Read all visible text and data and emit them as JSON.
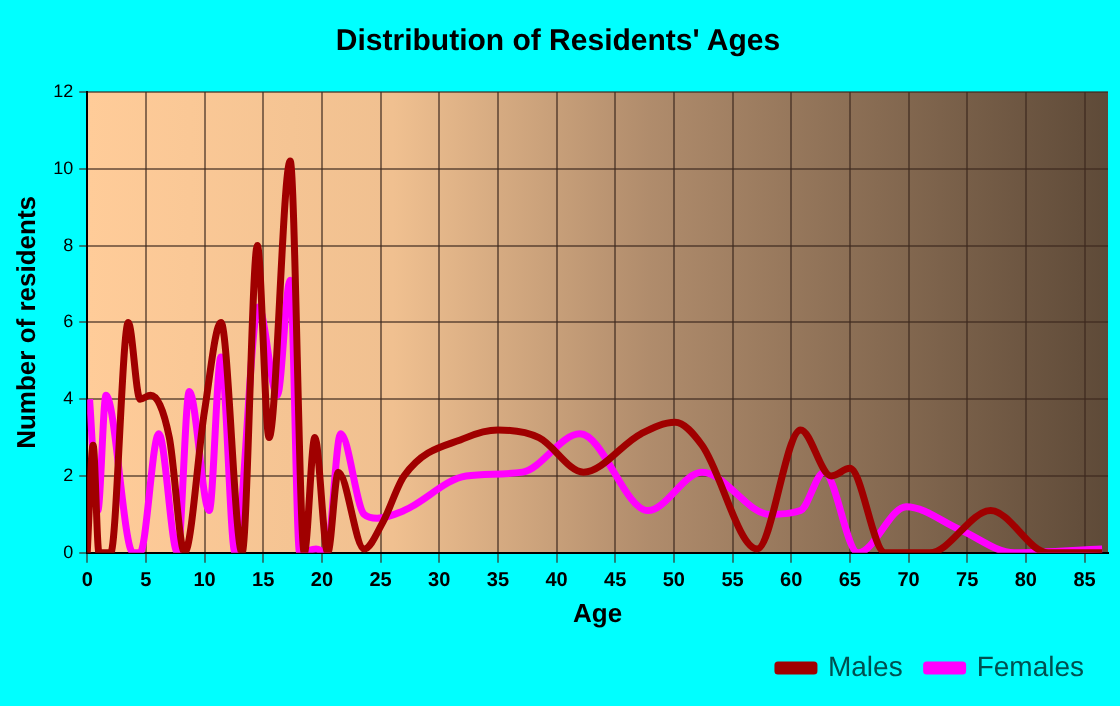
{
  "chart_data": {
    "type": "line",
    "title": "Distribution of Residents' Ages",
    "xlabel": "Age",
    "ylabel": "Number of residents",
    "xlim": [
      0,
      87
    ],
    "xticks": [
      0,
      5,
      10,
      15,
      20,
      25,
      30,
      35,
      40,
      45,
      50,
      55,
      60,
      65,
      70,
      75,
      80,
      85
    ],
    "ylim": [
      0,
      12
    ],
    "yticks": [
      0,
      2,
      4,
      6,
      8,
      10,
      12
    ],
    "grid": true,
    "legend": "bottom right",
    "marker": "none",
    "line_style": "solid",
    "series": [
      {
        "name": "Males",
        "color": "#a00000",
        "x": [
          0,
          0.5,
          1,
          2,
          3.5,
          4.5,
          5.4,
          7,
          8.3,
          10,
          11.4,
          13.2,
          14.5,
          15.5,
          17.3,
          18.5,
          19.4,
          20.5,
          21.4,
          23.6,
          25.2,
          27,
          32.3,
          35,
          38.5,
          42.3,
          47.2,
          50.1,
          52.4,
          57.1,
          60.8,
          63.4,
          65,
          68,
          71.8,
          77,
          81.9,
          86.5
        ],
        "values": [
          0,
          2.8,
          0,
          0,
          6,
          4,
          4.1,
          3,
          0,
          3.7,
          6,
          0,
          8,
          3,
          10.2,
          0,
          3,
          0,
          2.1,
          0.1,
          0.8,
          2,
          3,
          3.2,
          3,
          2.1,
          3.1,
          3.4,
          2.8,
          0.1,
          3.2,
          2,
          2.2,
          0,
          0,
          1.1,
          0,
          0
        ]
      },
      {
        "name": "Females",
        "color": "#ff00ff",
        "x": [
          0.2,
          0.9,
          1.6,
          3.9,
          4.5,
          6.1,
          7.7,
          8.7,
          10.4,
          11.4,
          12.6,
          14.6,
          16.2,
          17.3,
          18.1,
          19.5,
          20.4,
          21.6,
          23.6,
          24.7,
          27,
          32.3,
          37.1,
          42,
          47.8,
          52.4,
          58.2,
          60.8,
          62.8,
          65.7,
          69.8,
          74.4,
          79,
          86.5
        ],
        "values": [
          4,
          1.1,
          4.1,
          0,
          0,
          3.1,
          0,
          4.2,
          1.1,
          5.1,
          0,
          6.4,
          4.1,
          7.1,
          0,
          0.1,
          0,
          3.1,
          1,
          0.9,
          1.1,
          2,
          2.1,
          3.1,
          1.1,
          2.1,
          1,
          1.1,
          2.1,
          0,
          1.2,
          0.6,
          0,
          0.1
        ]
      }
    ]
  }
}
